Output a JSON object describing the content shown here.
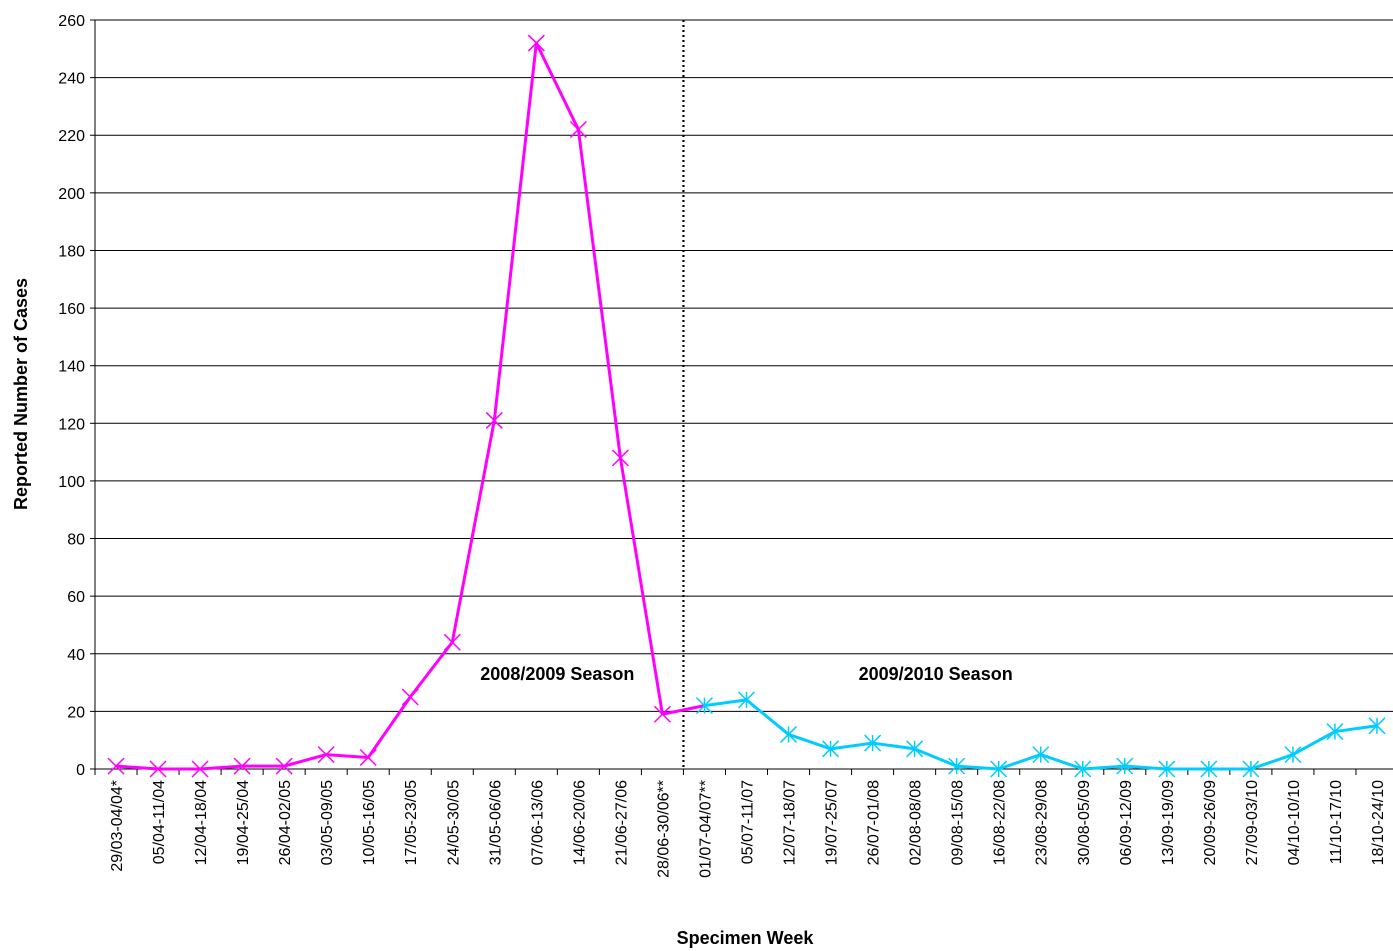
{
  "chart_data": {
    "type": "line",
    "xlabel": "Specimen Week",
    "ylabel": "Reported Number of Cases",
    "ylim": [
      0,
      260
    ],
    "yticks": [
      "0",
      "20",
      "40",
      "60",
      "80",
      "100",
      "120",
      "140",
      "160",
      "180",
      "200",
      "220",
      "240",
      "260"
    ],
    "grid": "horizontal",
    "legend": "none",
    "categories": [
      "29/03-04/04*",
      "05/04-11/04",
      "12/04-18/04",
      "19/04-25/04",
      "26/04-02/05",
      "03/05-09/05",
      "10/05-16/05",
      "17/05-23/05",
      "24/05-30/05",
      "31/05-06/06",
      "07/06-13/06",
      "14/06-20/06",
      "21/06-27/06",
      "28/06-30/06**",
      "01/07-04/07**",
      "05/07-11/07",
      "12/07-18/07",
      "19/07-25/07",
      "26/07-01/08",
      "02/08-08/08",
      "09/08-15/08",
      "16/08-22/08",
      "23/08-29/08",
      "30/08-05/09",
      "06/09-12/09",
      "13/09-19/09",
      "20/09-26/09",
      "27/09-03/10",
      "04/10-10/10",
      "11/10-17/10",
      "18/10-24/10"
    ],
    "series": [
      {
        "color": "#ff00ff",
        "marker": "x",
        "values": [
          1,
          0,
          0,
          1,
          1,
          5,
          4,
          25,
          44,
          121,
          252,
          222,
          108,
          19,
          null,
          null,
          null,
          null,
          null,
          null,
          null,
          null,
          null,
          null,
          null,
          null,
          null,
          null,
          null,
          null,
          null
        ]
      },
      {
        "color": "#00ccff",
        "marker": "asterisk",
        "values": [
          null,
          null,
          null,
          null,
          null,
          null,
          null,
          null,
          null,
          null,
          null,
          null,
          null,
          null,
          22,
          24,
          12,
          7,
          9,
          7,
          1,
          0,
          5,
          0,
          1,
          0,
          0,
          0,
          5,
          13,
          15
        ]
      }
    ],
    "season_divider_after_index": 13,
    "annotations": [
      {
        "text": "2008/2009 Season",
        "x_index": 10.5,
        "y": 33
      },
      {
        "text": "2009/2010 Season",
        "x_index": 19.5,
        "y": 33
      }
    ],
    "connector_color": "#ff00ff"
  }
}
